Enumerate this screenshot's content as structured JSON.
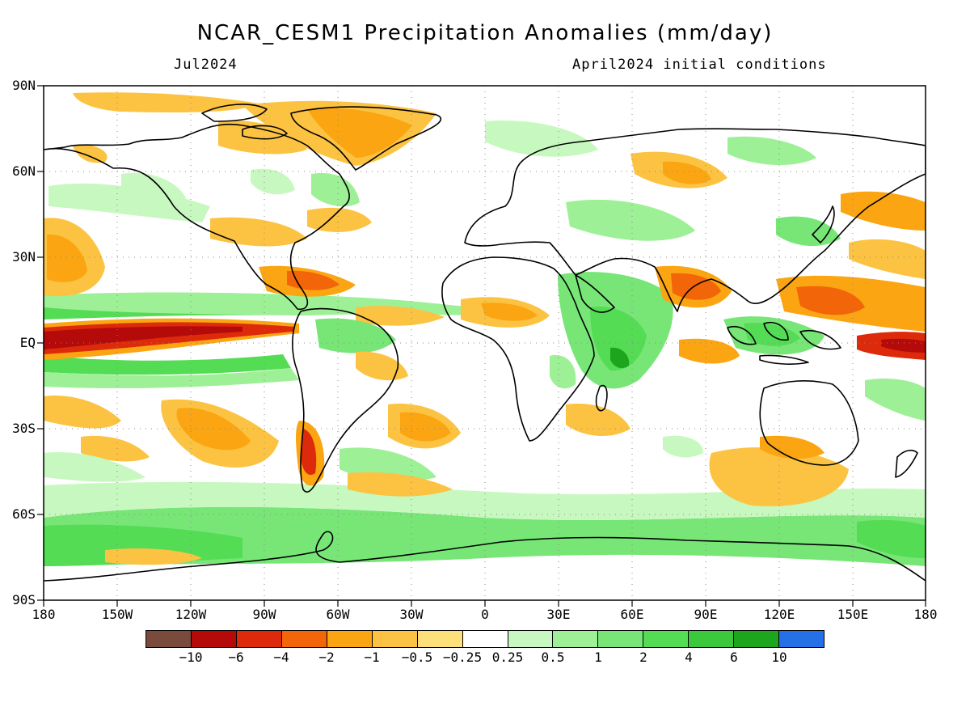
{
  "header": {
    "title": "NCAR_CESM1 Precipitation Anomalies (mm/day)",
    "period": "Jul2024",
    "init": "April2024 initial conditions"
  },
  "axes": {
    "lat_labels": [
      "90N",
      "60N",
      "30N",
      "EQ",
      "30S",
      "60S",
      "90S"
    ],
    "lon_labels": [
      "180",
      "150W",
      "120W",
      "90W",
      "60W",
      "30W",
      "0",
      "30E",
      "60E",
      "90E",
      "120E",
      "150E",
      "180"
    ]
  },
  "colorbar": {
    "colors": [
      "#7a4a3c",
      "#b50a0a",
      "#dc2a0a",
      "#f26508",
      "#fba512",
      "#fcc343",
      "#fde07a",
      "#ffffff",
      "#c7f8bf",
      "#9df096",
      "#77e677",
      "#55dc55",
      "#3cc83c",
      "#1ea51e",
      "#2470e6"
    ],
    "labels": [
      "−10",
      "−6",
      "−4",
      "−2",
      "−1",
      "−0.5",
      "−0.25",
      "0.25",
      "0.5",
      "1",
      "2",
      "4",
      "6",
      "10"
    ]
  },
  "colors": {
    "strong_dry": "#b50a0a",
    "dry": "#f26508",
    "moderate_dry": "#fba512",
    "light_dry": "#fcc343",
    "light_wet": "#9df096",
    "wet": "#55dc55",
    "strong_wet": "#1ea51e"
  }
}
